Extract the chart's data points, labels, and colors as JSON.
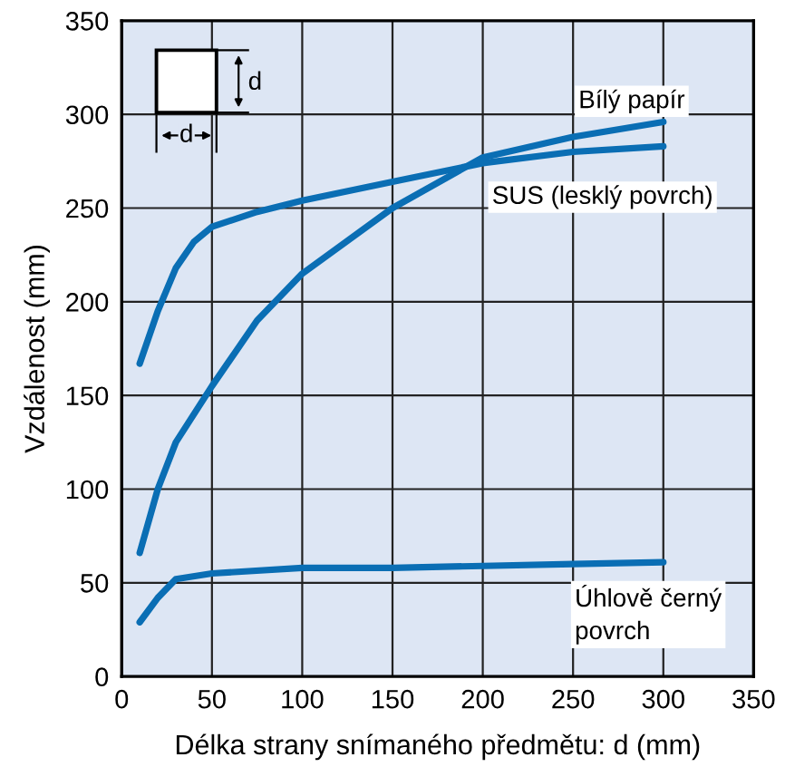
{
  "chart_data": {
    "type": "line",
    "xlabel": "Délka strany snímaného předmětu: d (mm)",
    "ylabel": "Vzdálenost (mm)",
    "series": [
      {
        "color": "#0a6eb4",
        "x": [
          10,
          20,
          30,
          40,
          50,
          75,
          100,
          150,
          200,
          250,
          300
        ],
        "values": [
          167,
          195,
          218,
          232,
          240,
          248,
          254,
          264,
          274,
          280,
          283
        ]
      },
      {
        "color": "#0a6eb4",
        "x": [
          10,
          20,
          30,
          50,
          75,
          100,
          150,
          200,
          250,
          300
        ],
        "values": [
          66,
          100,
          125,
          155,
          190,
          215,
          250,
          277,
          288,
          296
        ]
      },
      {
        "color": "#0a6eb4",
        "x": [
          10,
          20,
          30,
          50,
          100,
          150,
          200,
          250,
          300
        ],
        "values": [
          29,
          42,
          52,
          55,
          58,
          58,
          59,
          60,
          61
        ]
      }
    ],
    "annotations": [
      "Bílý papír",
      "SUS (lesklý povrch)",
      "Úhlově černý\npovrch",
      "d",
      "d"
    ],
    "xlim": [
      0,
      350
    ],
    "ylim": [
      0,
      350
    ],
    "xticks": [
      0,
      50,
      100,
      150,
      200,
      250,
      300,
      350
    ],
    "yticks": [
      0,
      50,
      100,
      150,
      200,
      250,
      300,
      350
    ],
    "grid": true,
    "marker": "none",
    "line_style": "solid"
  }
}
